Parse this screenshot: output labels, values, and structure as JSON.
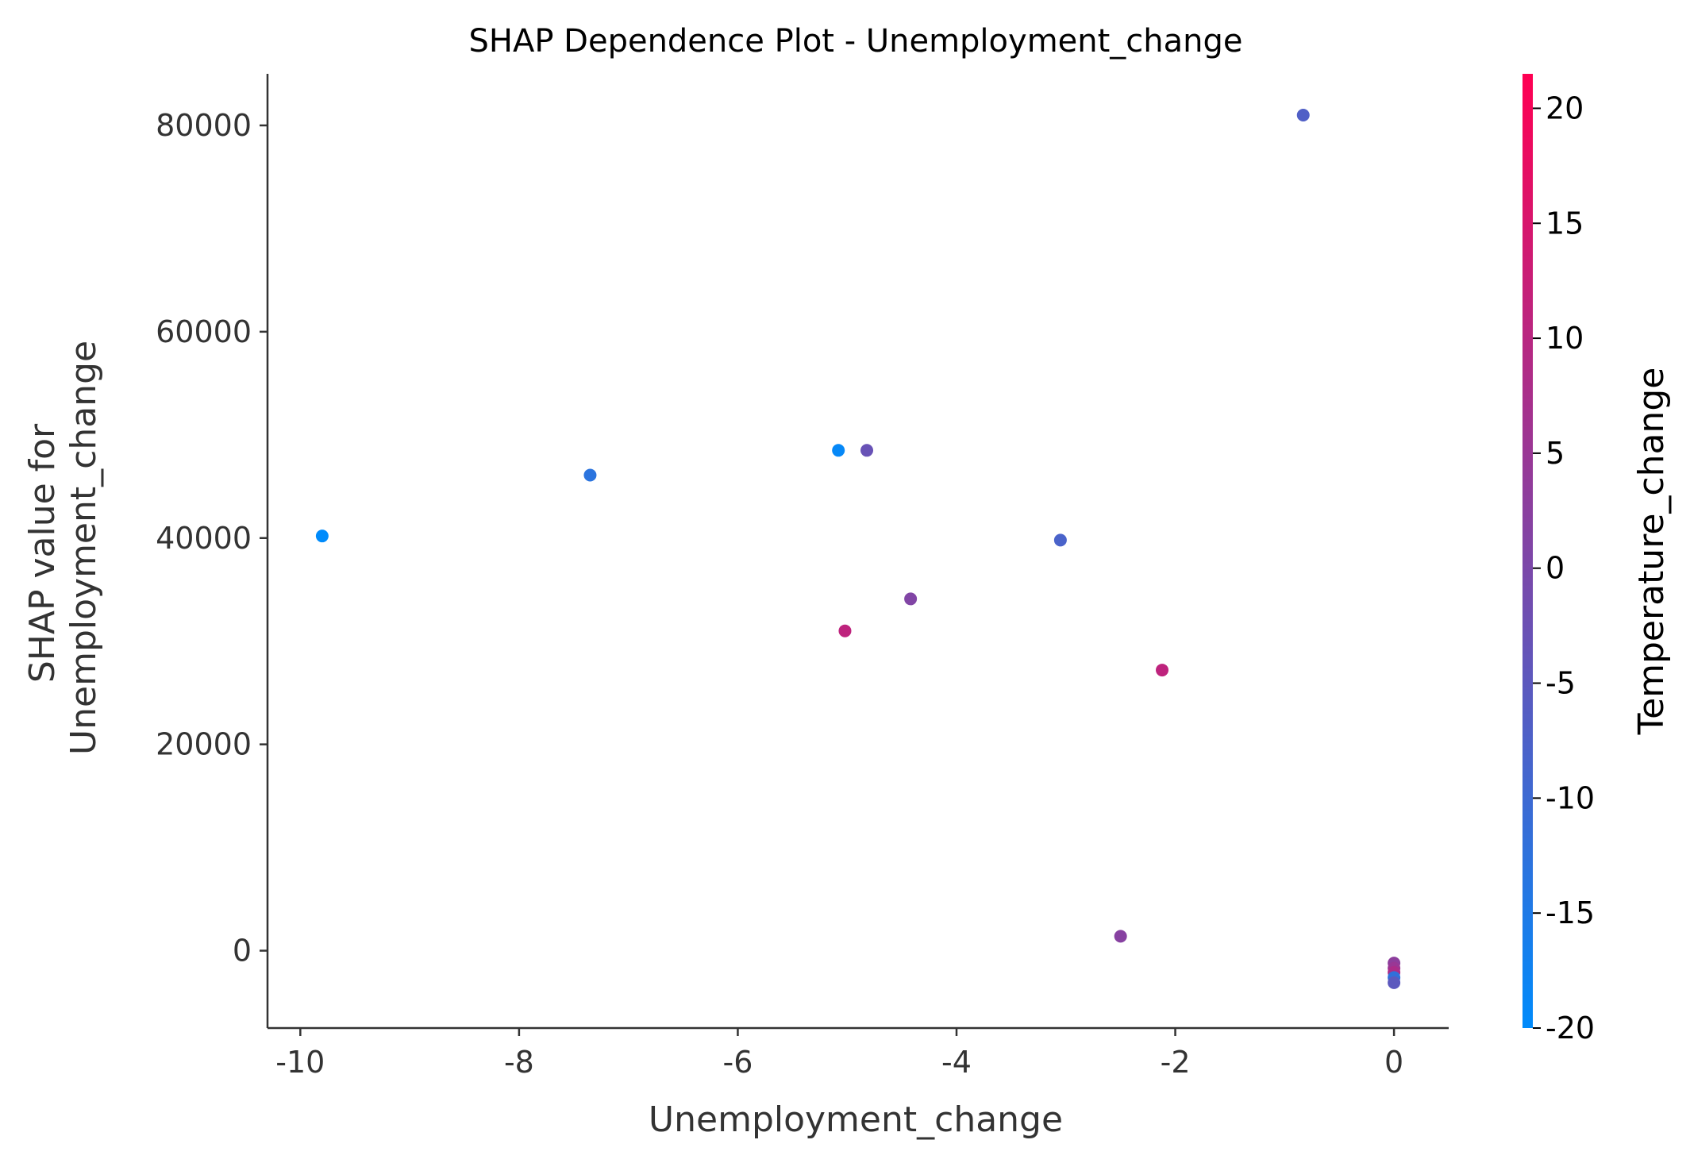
{
  "chart_data": {
    "type": "scatter",
    "title": "SHAP Dependence Plot - Unemployment_change",
    "xlabel": "Unemployment_change",
    "ylabel_lines": [
      "SHAP value for",
      "Unemployment_change"
    ],
    "xlim": [
      -10.3,
      0.5
    ],
    "ylim": [
      -7500,
      85000
    ],
    "xticks": [
      -10,
      -8,
      -6,
      -4,
      -2,
      0
    ],
    "xtick_labels": [
      "-10",
      "-8",
      "-6",
      "-4",
      "-2",
      "0"
    ],
    "yticks": [
      0,
      20000,
      40000,
      60000,
      80000
    ],
    "ytick_labels": [
      "0",
      "20000",
      "40000",
      "60000",
      "80000"
    ],
    "grid": false,
    "colorbar": {
      "label": "Temperature_change",
      "range": [
        -20,
        21.5
      ],
      "ticks": [
        -20,
        -15,
        -10,
        -5,
        0,
        5,
        10,
        15,
        20
      ],
      "tick_labels": [
        "-20",
        "-15",
        "-10",
        "-5",
        "0",
        "5",
        "10",
        "15",
        "20"
      ],
      "color_low": "#008bfb",
      "color_high": "#ff0052"
    },
    "points": [
      {
        "x": -9.8,
        "y": 40200,
        "c": -20
      },
      {
        "x": -7.35,
        "y": 46100,
        "c": -13
      },
      {
        "x": -5.08,
        "y": 48500,
        "c": -19
      },
      {
        "x": -4.82,
        "y": 48500,
        "c": -3
      },
      {
        "x": -5.02,
        "y": 31000,
        "c": 11
      },
      {
        "x": -4.42,
        "y": 34100,
        "c": 1
      },
      {
        "x": -3.05,
        "y": 39800,
        "c": -8
      },
      {
        "x": -2.12,
        "y": 27200,
        "c": 11
      },
      {
        "x": -2.5,
        "y": 1400,
        "c": 2
      },
      {
        "x": -0.83,
        "y": 81000,
        "c": -7
      },
      {
        "x": 0,
        "y": -1200,
        "c": 3
      },
      {
        "x": 0,
        "y": -1700,
        "c": 5
      },
      {
        "x": 0,
        "y": -2100,
        "c": 8
      },
      {
        "x": 0,
        "y": -2600,
        "c": -12
      },
      {
        "x": 0,
        "y": -3100,
        "c": -5
      }
    ]
  }
}
